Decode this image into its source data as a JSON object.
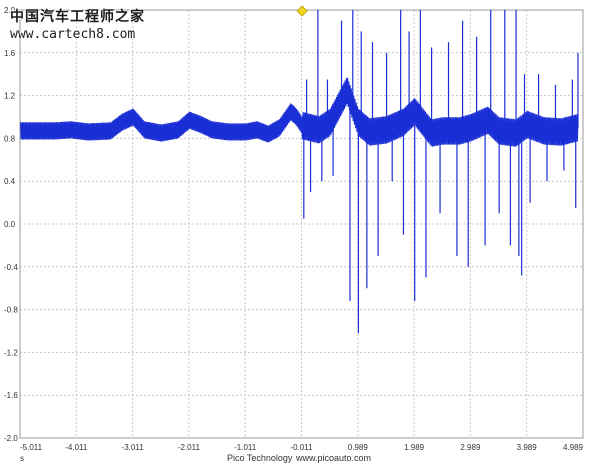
{
  "watermark": {
    "site_name": "中国汽车工程师之家",
    "url": "www.cartech8.com"
  },
  "footer": {
    "brand": "Pico Technology",
    "website": "www.picoauto.com",
    "unit": "s"
  },
  "chart_data": {
    "type": "line",
    "title": "",
    "xlabel": "s",
    "ylabel": "",
    "xlim": [
      -5.011,
      4.989
    ],
    "ylim": [
      -2.0,
      2.0
    ],
    "x_ticks": [
      "-5.011",
      "-4.011",
      "-3.011",
      "-2.011",
      "-1.011",
      "-0.011",
      "0.989",
      "1.989",
      "2.989",
      "3.989",
      "4.989"
    ],
    "y_ticks": [
      "-2.0",
      "-1.6",
      "-1.2",
      "-0.8",
      "-0.4",
      "0.0",
      "0.4",
      "0.8",
      "1.2",
      "1.6",
      "2.0"
    ],
    "grid": true,
    "trigger_marker_x": 0.0,
    "line_color": "#1a2ed6",
    "series": [
      {
        "x": [
          -5.0,
          -4.7,
          -4.4,
          -4.1,
          -3.8,
          -3.4,
          -3.2,
          -3.0,
          -2.8,
          -2.5,
          -2.2,
          -2.0,
          -1.8,
          -1.6,
          -1.3,
          -1.0,
          -0.8,
          -0.6,
          -0.4,
          -0.2,
          -0.1,
          0.0,
          0.3,
          0.5,
          0.8,
          1.0,
          1.2,
          1.5,
          1.8,
          2.0,
          2.3,
          2.5,
          2.8,
          3.0,
          3.3,
          3.5,
          3.8,
          4.0,
          4.3,
          4.6,
          4.9
        ],
        "y": [
          0.87,
          0.87,
          0.87,
          0.88,
          0.86,
          0.87,
          0.95,
          1.0,
          0.88,
          0.85,
          0.88,
          0.97,
          0.93,
          0.88,
          0.86,
          0.86,
          0.88,
          0.84,
          0.9,
          1.05,
          1.0,
          0.92,
          0.88,
          0.95,
          1.25,
          0.95,
          0.86,
          0.88,
          0.95,
          1.05,
          0.85,
          0.87,
          0.87,
          0.9,
          0.97,
          0.87,
          0.85,
          0.93,
          0.87,
          0.86,
          0.9
        ],
        "ripple": 0.08,
        "spikes": [
          {
            "x": 0.03,
            "y": 0.05
          },
          {
            "x": 0.08,
            "y": 1.35
          },
          {
            "x": 0.15,
            "y": 0.3
          },
          {
            "x": 0.28,
            "y": 2.0
          },
          {
            "x": 0.35,
            "y": 0.4
          },
          {
            "x": 0.45,
            "y": 1.35
          },
          {
            "x": 0.55,
            "y": 0.45
          },
          {
            "x": 0.7,
            "y": 1.9
          },
          {
            "x": 0.85,
            "y": -0.72
          },
          {
            "x": 0.9,
            "y": 2.0
          },
          {
            "x": 1.0,
            "y": -1.02
          },
          {
            "x": 1.05,
            "y": 1.8
          },
          {
            "x": 1.15,
            "y": -0.6
          },
          {
            "x": 1.25,
            "y": 1.7
          },
          {
            "x": 1.35,
            "y": -0.3
          },
          {
            "x": 1.5,
            "y": 1.6
          },
          {
            "x": 1.6,
            "y": 0.4
          },
          {
            "x": 1.75,
            "y": 2.0
          },
          {
            "x": 1.8,
            "y": -0.1
          },
          {
            "x": 1.9,
            "y": 1.8
          },
          {
            "x": 2.0,
            "y": -0.72
          },
          {
            "x": 2.1,
            "y": 2.0
          },
          {
            "x": 2.2,
            "y": -0.5
          },
          {
            "x": 2.3,
            "y": 1.65
          },
          {
            "x": 2.45,
            "y": 0.1
          },
          {
            "x": 2.6,
            "y": 1.7
          },
          {
            "x": 2.75,
            "y": -0.3
          },
          {
            "x": 2.85,
            "y": 1.9
          },
          {
            "x": 2.95,
            "y": -0.4
          },
          {
            "x": 3.1,
            "y": 1.75
          },
          {
            "x": 3.25,
            "y": -0.2
          },
          {
            "x": 3.35,
            "y": 2.0
          },
          {
            "x": 3.5,
            "y": 0.1
          },
          {
            "x": 3.6,
            "y": 2.0
          },
          {
            "x": 3.7,
            "y": -0.2
          },
          {
            "x": 3.8,
            "y": 2.0
          },
          {
            "x": 3.85,
            "y": -0.3
          },
          {
            "x": 3.9,
            "y": -0.48
          },
          {
            "x": 3.95,
            "y": 1.4
          },
          {
            "x": 4.05,
            "y": 0.2
          },
          {
            "x": 4.2,
            "y": 1.4
          },
          {
            "x": 4.35,
            "y": 0.4
          },
          {
            "x": 4.5,
            "y": 1.3
          },
          {
            "x": 4.65,
            "y": 0.5
          },
          {
            "x": 4.8,
            "y": 1.35
          },
          {
            "x": 4.86,
            "y": 0.15
          },
          {
            "x": 4.9,
            "y": 1.6
          }
        ]
      }
    ]
  }
}
